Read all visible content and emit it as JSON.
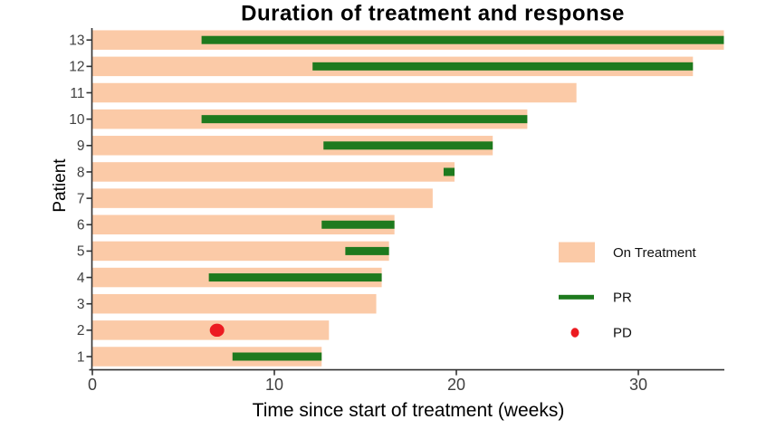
{
  "title": "Duration of treatment and response",
  "chart_data": {
    "type": "bar",
    "orientation": "horizontal",
    "title": "Duration of treatment and response",
    "xlabel": "Time since start of treatment (weeks)",
    "ylabel": "Patient",
    "x_ticks": [
      0,
      10,
      20,
      30
    ],
    "xlim": [
      0,
      35
    ],
    "y_categories": [
      1,
      2,
      3,
      4,
      5,
      6,
      7,
      8,
      9,
      10,
      11,
      12,
      13
    ],
    "series": [
      {
        "name": "On Treatment",
        "type": "bar",
        "color": "#FBCAA7"
      },
      {
        "name": "PR",
        "type": "bar",
        "color": "#1E7A1E"
      },
      {
        "name": "PD",
        "type": "point",
        "color": "#EC1B21"
      }
    ],
    "patients": [
      {
        "id": 1,
        "on_treatment": 12.6,
        "pr": [
          7.7,
          12.6
        ],
        "pd": null
      },
      {
        "id": 2,
        "on_treatment": 13.0,
        "pr": null,
        "pd": 6.85
      },
      {
        "id": 3,
        "on_treatment": 15.6,
        "pr": null,
        "pd": null
      },
      {
        "id": 4,
        "on_treatment": 15.9,
        "pr": [
          6.4,
          15.9
        ],
        "pd": null
      },
      {
        "id": 5,
        "on_treatment": 16.3,
        "pr": [
          13.9,
          16.3
        ],
        "pd": null
      },
      {
        "id": 6,
        "on_treatment": 16.6,
        "pr": [
          12.6,
          16.6
        ],
        "pd": null
      },
      {
        "id": 7,
        "on_treatment": 18.7,
        "pr": null,
        "pd": null
      },
      {
        "id": 8,
        "on_treatment": 19.9,
        "pr": [
          19.3,
          19.9
        ],
        "pd": null
      },
      {
        "id": 9,
        "on_treatment": 22.0,
        "pr": [
          12.7,
          22.0
        ],
        "pd": null
      },
      {
        "id": 10,
        "on_treatment": 23.9,
        "pr": [
          6.0,
          23.9
        ],
        "pd": null
      },
      {
        "id": 11,
        "on_treatment": 26.6,
        "pr": null,
        "pd": null
      },
      {
        "id": 12,
        "on_treatment": 33.0,
        "pr": [
          12.1,
          33.0
        ],
        "pd": null
      },
      {
        "id": 13,
        "on_treatment": 34.7,
        "pr": [
          6.0,
          34.7
        ],
        "pd": null
      }
    ],
    "legend": {
      "position": "right-inside",
      "items": [
        {
          "label": "On Treatment",
          "type": "rect",
          "color": "#FBCAA7"
        },
        {
          "label": "PR",
          "type": "line",
          "color": "#1E7A1E"
        },
        {
          "label": "PD",
          "type": "point",
          "color": "#EC1B21"
        }
      ]
    },
    "colors": {
      "on_treatment": "#FBCAA7",
      "pr": "#1E7A1E",
      "pd": "#EC1B21",
      "axis": "#333333",
      "tick_label": "#3F3F3F",
      "text": "#000000"
    }
  }
}
